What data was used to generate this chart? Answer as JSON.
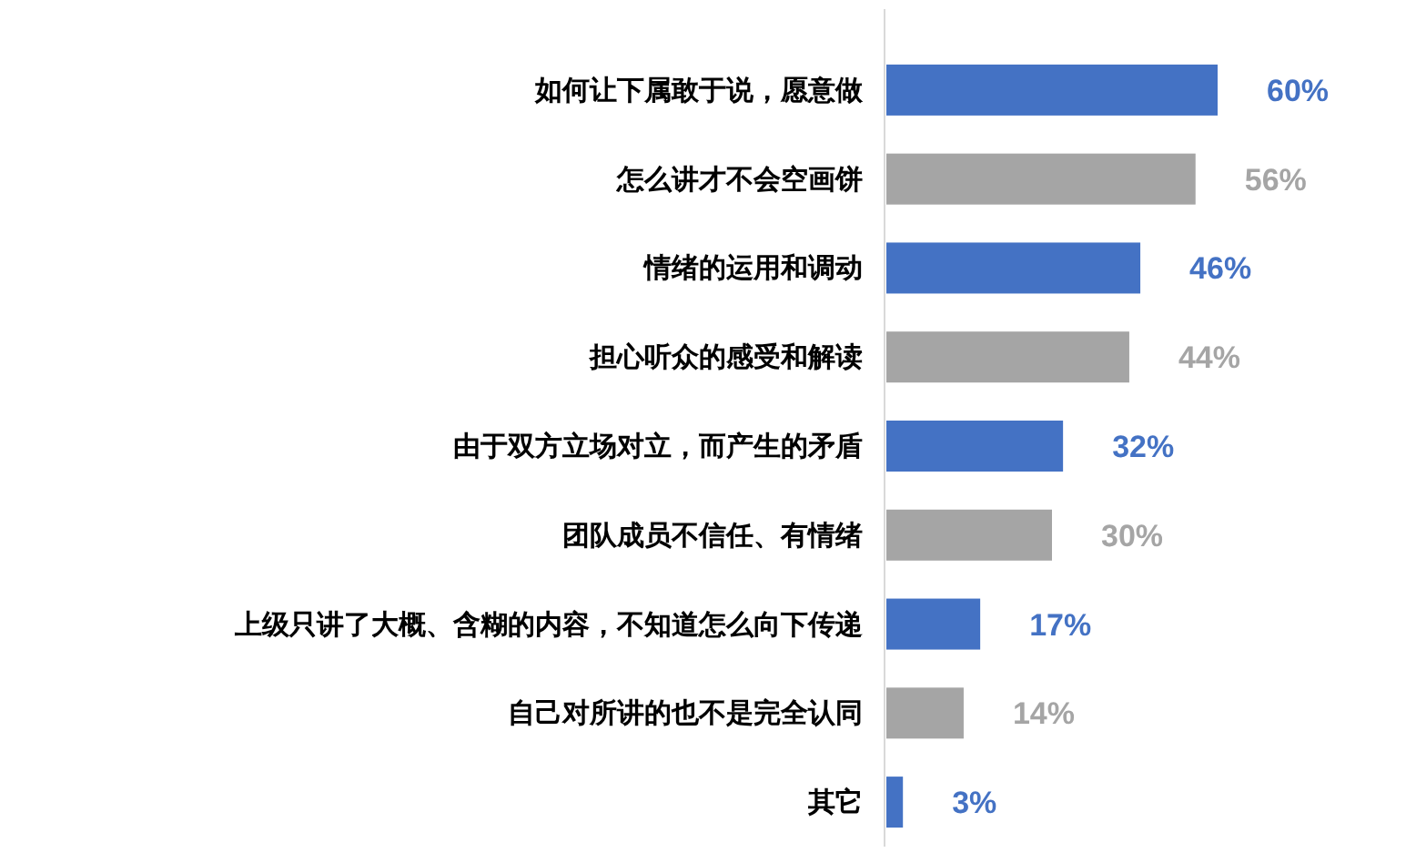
{
  "chart_data": {
    "type": "bar",
    "orientation": "horizontal",
    "categories": [
      "如何让下属敢于说，愿意做",
      "怎么讲才不会空画饼",
      "情绪的运用和调动",
      "担心听众的感受和解读",
      "由于双方立场对立，而产生的矛盾",
      "团队成员不信任、有情绪",
      "上级只讲了大概、含糊的内容，不知道怎么向下传递",
      "自己对所讲的也不是完全认同",
      "其它"
    ],
    "values": [
      60,
      56,
      46,
      44,
      32,
      30,
      17,
      14,
      3
    ],
    "colors": [
      "#4472c4",
      "#a5a5a5",
      "#4472c4",
      "#a5a5a5",
      "#4472c4",
      "#a5a5a5",
      "#4472c4",
      "#a5a5a5",
      "#4472c4"
    ],
    "value_labels": [
      "60%",
      "56%",
      "46%",
      "44%",
      "32%",
      "30%",
      "17%",
      "14%",
      "3%"
    ]
  }
}
